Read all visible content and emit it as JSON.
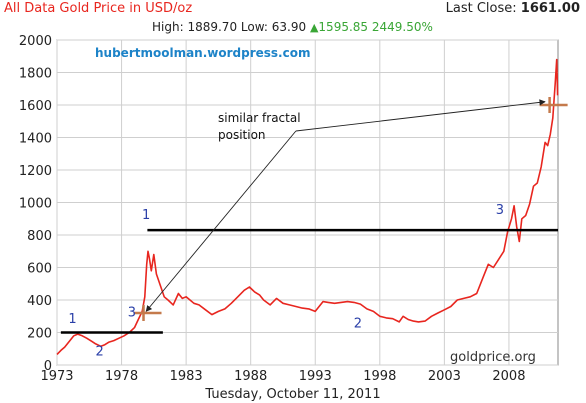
{
  "header": {
    "title": "All Data Gold Price in USD/oz",
    "last_close_label": "Last Close:",
    "last_close_value": "1661.00",
    "high_label": "High:",
    "high_value": "1889.70",
    "low_label": "Low:",
    "low_value": "63.90",
    "change_value": "1595.85",
    "change_pct": "2449.50%",
    "up_icon": "triangle-up-icon"
  },
  "watermark_top": "hubertmoolman.wordpress.com",
  "watermark_bottom": "goldprice.org",
  "date_label": "Tuesday, October 11, 2011",
  "annotation": "similar fractal position",
  "annotation_lines": [
    "similar fractal",
    "position"
  ],
  "colors": {
    "title": "#e8261f",
    "price_line": "#e8261f",
    "wave_label": "#2a3fa8",
    "watermark": "#1d83c8",
    "marker": "#c47a4c",
    "change": "#3aa636"
  },
  "chart_data": {
    "type": "line",
    "x_axis_type": "year",
    "xlim": [
      1973,
      2011.8
    ],
    "ylim": [
      0,
      2000
    ],
    "x_ticks": [
      1973,
      1978,
      1983,
      1988,
      1993,
      1998,
      2003,
      2008
    ],
    "y_ticks": [
      0,
      200,
      400,
      600,
      800,
      1000,
      1200,
      1400,
      1600,
      1800,
      2000
    ],
    "grid": true,
    "series": [
      {
        "x": [
          1973.0,
          1973.3,
          1973.6,
          1974.0,
          1974.3,
          1974.6,
          1974.95,
          1975.3,
          1975.7,
          1976.0,
          1976.4,
          1976.7,
          1977.0,
          1977.4,
          1977.8,
          1978.2,
          1978.6,
          1979.0,
          1979.3,
          1979.6,
          1979.8,
          1979.95,
          1980.05,
          1980.15,
          1980.3,
          1980.5,
          1980.7,
          1981.0,
          1981.3,
          1981.6,
          1982.0,
          1982.4,
          1982.7,
          1983.0,
          1983.3,
          1983.6,
          1984.0,
          1984.5,
          1985.0,
          1985.5,
          1986.0,
          1986.5,
          1987.0,
          1987.5,
          1987.9,
          1988.3,
          1988.7,
          1989.0,
          1989.5,
          1990.0,
          1990.5,
          1991.0,
          1991.5,
          1992.0,
          1992.5,
          1993.0,
          1993.6,
          1994.0,
          1994.5,
          1995.0,
          1995.5,
          1996.0,
          1996.5,
          1997.0,
          1997.5,
          1998.0,
          1998.5,
          1999.0,
          1999.5,
          1999.8,
          2000.2,
          2000.6,
          2001.0,
          2001.5,
          2002.0,
          2002.5,
          2003.0,
          2003.5,
          2004.0,
          2004.5,
          2005.0,
          2005.5,
          2006.0,
          2006.4,
          2006.8,
          2007.2,
          2007.6,
          2007.9,
          2008.2,
          2008.4,
          2008.6,
          2008.8,
          2009.0,
          2009.3,
          2009.6,
          2009.9,
          2010.2,
          2010.5,
          2010.8,
          2011.0,
          2011.2,
          2011.4,
          2011.6,
          2011.7,
          2011.77
        ],
        "y": [
          65,
          90,
          110,
          150,
          180,
          190,
          180,
          165,
          145,
          130,
          115,
          125,
          140,
          150,
          165,
          180,
          200,
          230,
          280,
          330,
          420,
          620,
          700,
          660,
          580,
          680,
          560,
          490,
          420,
          400,
          370,
          440,
          410,
          420,
          400,
          380,
          370,
          340,
          310,
          330,
          345,
          380,
          420,
          460,
          480,
          450,
          430,
          400,
          370,
          410,
          380,
          370,
          360,
          350,
          345,
          330,
          390,
          385,
          380,
          385,
          390,
          385,
          375,
          345,
          330,
          300,
          290,
          285,
          265,
          300,
          280,
          270,
          265,
          270,
          300,
          320,
          340,
          360,
          400,
          410,
          420,
          440,
          540,
          620,
          600,
          650,
          700,
          820,
          900,
          980,
          850,
          760,
          900,
          920,
          990,
          1100,
          1120,
          1220,
          1370,
          1350,
          1420,
          1520,
          1750,
          1880,
          1660
        ]
      }
    ],
    "levels": [
      {
        "y": 200,
        "x": [
          1973.3,
          1981.2
        ]
      },
      {
        "y": 830,
        "x": [
          1980.0,
          2011.8
        ]
      }
    ],
    "markers": [
      {
        "x": 1979.7,
        "y": 320
      },
      {
        "x": 2011.15,
        "y": 1600
      }
    ],
    "wave_labels": [
      {
        "text": "1",
        "x": 1974.2,
        "y": 260
      },
      {
        "text": "2",
        "x": 1976.3,
        "y": 60
      },
      {
        "text": "3",
        "x": 1978.8,
        "y": 300
      },
      {
        "text": "1",
        "x": 1979.9,
        "y": 900
      },
      {
        "text": "2",
        "x": 1996.3,
        "y": 230
      },
      {
        "text": "3",
        "x": 2007.3,
        "y": 930
      }
    ],
    "arrow_from": {
      "x": 1991.5,
      "y": 1440
    },
    "arrow_targets": [
      {
        "x": 1979.9,
        "y": 330
      },
      {
        "x": 2010.8,
        "y": 1620
      }
    ]
  }
}
